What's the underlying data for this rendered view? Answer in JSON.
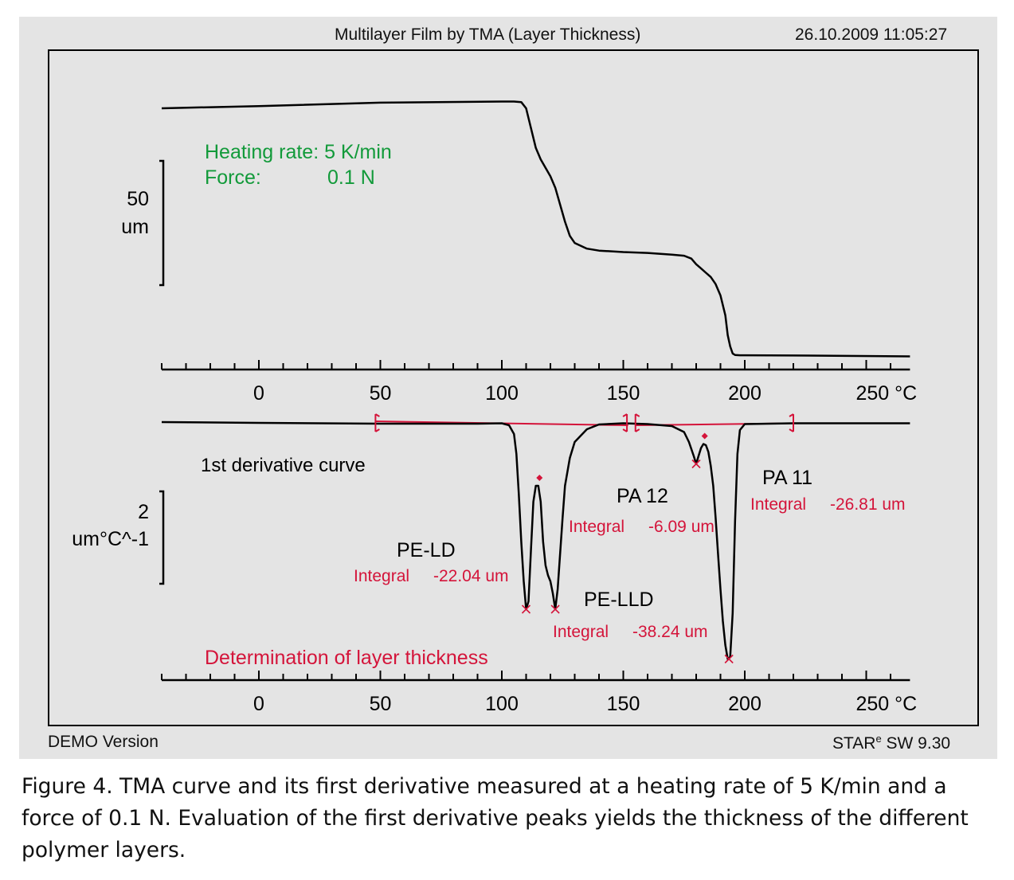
{
  "header": {
    "title": "Multilayer Film by TMA (Layer Thickness)",
    "timestamp": "26.10.2009 11:05:27"
  },
  "footer": {
    "left": "DEMO Version",
    "right_brand": "STAR",
    "right_sup": "e",
    "right_version": " SW 9.30"
  },
  "caption": "Figure 4. TMA curve and its first derivative measured at a heating rate of 5 K/min and a force of 0.1 N. Evaluation of the first derivative peaks yields the thickness of the different polymer layers.",
  "colors": {
    "curve": "#000000",
    "annotation_red": "#d4143a",
    "green": "#129a3a",
    "panel_bg": "#e4e4e4"
  },
  "chart_data": [
    {
      "type": "line",
      "name_role": "TMA curve",
      "x_unit": "°C",
      "xlim": [
        -40,
        268
      ],
      "x_ticks": [
        0,
        50,
        100,
        150,
        200,
        250
      ],
      "x_tick_labels": [
        "0",
        "50",
        "100",
        "150",
        "200",
        "250 °C"
      ],
      "scale_bar": {
        "value": "50",
        "unit": "um",
        "span_um": 50
      },
      "annotations": {
        "heating_label": "Heating rate: 5 K/min",
        "force_label": "Force:",
        "force_value": "0.1 N"
      },
      "x": [
        -40,
        0,
        50,
        100,
        105,
        108,
        110,
        112,
        114,
        116,
        118,
        120,
        122,
        124,
        126,
        128,
        130,
        135,
        140,
        150,
        160,
        170,
        175,
        178,
        180,
        182,
        184,
        186,
        188,
        190,
        192,
        193,
        194,
        195,
        196,
        198,
        200,
        220,
        268
      ],
      "y_um": [
        0,
        0.8,
        2,
        2.4,
        2.4,
        2.2,
        0,
        -7,
        -14,
        -18,
        -21,
        -24,
        -28,
        -34,
        -40,
        -45,
        -47.5,
        -49.5,
        -50.2,
        -50.7,
        -51,
        -51.6,
        -52,
        -53,
        -55,
        -56.5,
        -58,
        -59.5,
        -62,
        -66,
        -73,
        -80,
        -84,
        -86.5,
        -87,
        -87.1,
        -87.1,
        -87.2,
        -87.5
      ]
    },
    {
      "type": "line",
      "name_role": "1st derivative curve",
      "x_unit": "°C",
      "xlim": [
        -40,
        268
      ],
      "x_ticks": [
        0,
        50,
        100,
        150,
        200,
        250
      ],
      "x_tick_labels": [
        "0",
        "50",
        "100",
        "150",
        "200",
        "250 °C"
      ],
      "scale_bar": {
        "value": "2",
        "unit": "um°C^-1",
        "span": 2
      },
      "curve_label": "1st derivative curve",
      "footer_label": "Determination of layer thickness",
      "x": [
        -40,
        0,
        50,
        90,
        100,
        103,
        105,
        106,
        107,
        108,
        109,
        110,
        111,
        112,
        113,
        114,
        115,
        116,
        117,
        118,
        119,
        120,
        121,
        122,
        123,
        124,
        125,
        126,
        128,
        130,
        135,
        140,
        150,
        160,
        170,
        175,
        177,
        179,
        180,
        181,
        182,
        183,
        184,
        185,
        186,
        187,
        188,
        189,
        190,
        191,
        192,
        193,
        194,
        195,
        196,
        197,
        198,
        200,
        220,
        268
      ],
      "y": [
        0,
        -0.02,
        -0.04,
        -0.04,
        -0.03,
        -0.08,
        -0.3,
        -0.8,
        -1.8,
        -3.0,
        -4.0,
        -4.7,
        -4.5,
        -3.2,
        -2.0,
        -1.6,
        -1.6,
        -2.0,
        -3.0,
        -3.6,
        -3.85,
        -4.0,
        -4.3,
        -4.7,
        -4.2,
        -3.3,
        -2.4,
        -1.6,
        -0.9,
        -0.5,
        -0.18,
        -0.06,
        -0.03,
        -0.05,
        -0.1,
        -0.25,
        -0.5,
        -0.85,
        -1.05,
        -0.85,
        -0.65,
        -0.55,
        -0.58,
        -0.75,
        -1.1,
        -1.6,
        -2.4,
        -3.3,
        -4.2,
        -5.0,
        -5.6,
        -5.95,
        -5.9,
        -4.8,
        -2.5,
        -0.8,
        -0.2,
        -0.05,
        -0.03,
        -0.03
      ],
      "baselines": [
        {
          "x": [
            48,
            152
          ],
          "y": [
            0.02,
            -0.08
          ]
        },
        {
          "x": 155,
          "x_end": 220,
          "y": [
            -0.08,
            -0.03
          ]
        }
      ],
      "limit_marks_x": [
        48,
        151.5,
        155,
        220
      ],
      "peak_marks": [
        {
          "x": 110,
          "y": -4.7
        },
        {
          "x": 122,
          "y": -4.7
        },
        {
          "x": 180,
          "y": -1.05
        },
        {
          "x": 193.5,
          "y": -5.95
        }
      ],
      "max_marks": [
        {
          "x": 115.5,
          "y": -1.6
        },
        {
          "x": 183.5,
          "y": -0.55
        }
      ],
      "peaks": [
        {
          "name": "PE-LD",
          "integral_label": "Integral",
          "integral_value": "-22.04 um"
        },
        {
          "name": "PE-LLD",
          "integral_label": "Integral",
          "integral_value": "-38.24 um"
        },
        {
          "name": "PA 12",
          "integral_label": "Integral",
          "integral_value": "-6.09 um"
        },
        {
          "name": "PA 11",
          "integral_label": "Integral",
          "integral_value": "-26.81 um"
        }
      ]
    }
  ]
}
